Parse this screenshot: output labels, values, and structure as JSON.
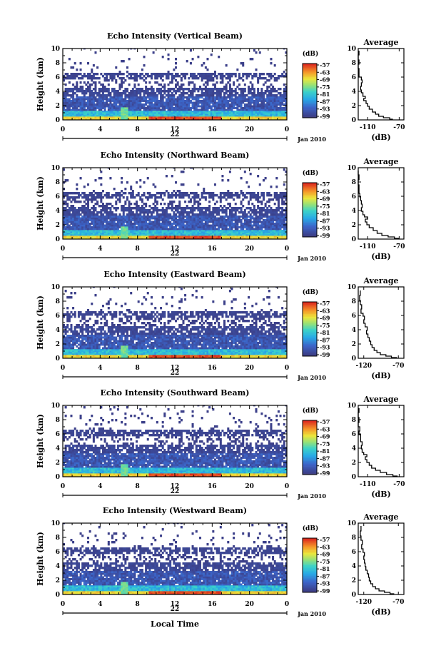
{
  "page": {
    "xlabel_bottom": "Local Time",
    "date_label": "Jan 2010",
    "day_label": "22"
  },
  "chart_data": [
    {
      "type": "heatmap",
      "title": "Echo Intensity (Vertical Beam)",
      "ylabel": "Height (km)",
      "x_ticks": [
        "0",
        "4",
        "8",
        "12",
        "16",
        "20",
        "0"
      ],
      "y_ticks": [
        "0",
        "2",
        "4",
        "6",
        "8",
        "10"
      ],
      "xlim": [
        0,
        24
      ],
      "ylim": [
        0,
        10
      ],
      "colorbar": {
        "label": "(dB)",
        "ticks": [
          "-57",
          "-63",
          "-69",
          "-75",
          "-81",
          "-87",
          "-93",
          "-99"
        ]
      },
      "avg": {
        "title": "Average",
        "xlabel": "(dB)",
        "x_ticks": [
          "-110",
          "-70"
        ],
        "xlim": [
          -122,
          -64
        ],
        "y_ticks": [
          "0",
          "2",
          "4",
          "6",
          "8",
          "10"
        ],
        "profile": [
          [
            -78,
            0.1
          ],
          [
            -82,
            0.3
          ],
          [
            -90,
            0.5
          ],
          [
            -96,
            0.8
          ],
          [
            -100,
            1.1
          ],
          [
            -104,
            1.5
          ],
          [
            -108,
            1.9
          ],
          [
            -110,
            2.3
          ],
          [
            -112,
            2.7
          ],
          [
            -115,
            3.0
          ],
          [
            -113,
            3.3
          ],
          [
            -116,
            3.8
          ],
          [
            -118,
            4.2
          ],
          [
            -119,
            4.7
          ],
          [
            -118,
            5.2
          ],
          [
            -117,
            5.6
          ],
          [
            -118,
            6.0
          ],
          [
            -121,
            6.5
          ],
          [
            -121,
            7.2
          ],
          [
            -122,
            7.8
          ],
          [
            -121,
            8.4
          ],
          [
            -122,
            9.1
          ],
          [
            -121,
            9.7
          ]
        ]
      }
    },
    {
      "type": "heatmap",
      "title": "Echo Intensity (Northward Beam)",
      "ylabel": "Height (km)",
      "x_ticks": [
        "0",
        "4",
        "8",
        "12",
        "16",
        "20",
        "0"
      ],
      "y_ticks": [
        "0",
        "2",
        "4",
        "6",
        "8",
        "10"
      ],
      "xlim": [
        0,
        24
      ],
      "ylim": [
        0,
        10
      ],
      "colorbar": {
        "label": "(dB)",
        "ticks": [
          "-57",
          "-63",
          "-69",
          "-75",
          "-81",
          "-87",
          "-93",
          "-99"
        ]
      },
      "avg": {
        "title": "Average",
        "xlabel": "(dB)",
        "x_ticks": [
          "-110",
          "-70"
        ],
        "xlim": [
          -122,
          -64
        ],
        "y_ticks": [
          "0",
          "2",
          "4",
          "6",
          "8",
          "10"
        ],
        "profile": [
          [
            -70,
            0.1
          ],
          [
            -76,
            0.3
          ],
          [
            -84,
            0.5
          ],
          [
            -92,
            0.8
          ],
          [
            -98,
            1.2
          ],
          [
            -103,
            1.6
          ],
          [
            -108,
            2.0
          ],
          [
            -111,
            2.4
          ],
          [
            -113,
            2.8
          ],
          [
            -110,
            3.1
          ],
          [
            -114,
            3.4
          ],
          [
            -116,
            3.9
          ],
          [
            -118,
            4.4
          ],
          [
            -117,
            4.9
          ],
          [
            -118,
            5.4
          ],
          [
            -119,
            5.9
          ],
          [
            -120,
            6.4
          ],
          [
            -121,
            7.0
          ],
          [
            -121,
            7.6
          ],
          [
            -122,
            8.3
          ],
          [
            -121,
            9.0
          ],
          [
            -122,
            9.6
          ]
        ]
      }
    },
    {
      "type": "heatmap",
      "title": "Echo Intensity (Eastward Beam)",
      "ylabel": "Height (km)",
      "x_ticks": [
        "0",
        "4",
        "8",
        "12",
        "16",
        "20",
        "0"
      ],
      "y_ticks": [
        "0",
        "2",
        "4",
        "6",
        "8",
        "10"
      ],
      "xlim": [
        0,
        24
      ],
      "ylim": [
        0,
        10
      ],
      "colorbar": {
        "label": "(dB)",
        "ticks": [
          "-57",
          "-63",
          "-69",
          "-75",
          "-81",
          "-87",
          "-93",
          "-99"
        ]
      },
      "avg": {
        "title": "Average",
        "xlabel": "(dB)",
        "x_ticks": [
          "-120",
          "-70"
        ],
        "xlim": [
          -128,
          -62
        ],
        "y_ticks": [
          "0",
          "2",
          "4",
          "6",
          "8",
          "10"
        ],
        "profile": [
          [
            -72,
            0.1
          ],
          [
            -80,
            0.3
          ],
          [
            -88,
            0.5
          ],
          [
            -96,
            0.8
          ],
          [
            -101,
            1.1
          ],
          [
            -105,
            1.5
          ],
          [
            -108,
            1.9
          ],
          [
            -110,
            2.4
          ],
          [
            -112,
            2.9
          ],
          [
            -114,
            3.4
          ],
          [
            -116,
            3.9
          ],
          [
            -115,
            4.4
          ],
          [
            -118,
            4.9
          ],
          [
            -120,
            5.4
          ],
          [
            -119,
            5.9
          ],
          [
            -121,
            6.3
          ],
          [
            -124,
            6.9
          ],
          [
            -123,
            7.5
          ],
          [
            -125,
            8.1
          ],
          [
            -126,
            8.8
          ],
          [
            -125,
            9.5
          ]
        ]
      }
    },
    {
      "type": "heatmap",
      "title": "Echo Intensity (Southward Beam)",
      "ylabel": "Height (km)",
      "x_ticks": [
        "0",
        "4",
        "8",
        "12",
        "16",
        "20",
        "0"
      ],
      "y_ticks": [
        "0",
        "2",
        "4",
        "6",
        "8",
        "10"
      ],
      "xlim": [
        0,
        24
      ],
      "ylim": [
        0,
        10
      ],
      "colorbar": {
        "label": "(dB)",
        "ticks": [
          "-57",
          "-63",
          "-69",
          "-75",
          "-81",
          "-87",
          "-93",
          "-99"
        ]
      },
      "avg": {
        "title": "Average",
        "xlabel": "(dB)",
        "x_ticks": [
          "-110",
          "-70"
        ],
        "xlim": [
          -122,
          -64
        ],
        "y_ticks": [
          "0",
          "2",
          "4",
          "6",
          "8",
          "10"
        ],
        "profile": [
          [
            -72,
            0.1
          ],
          [
            -78,
            0.3
          ],
          [
            -86,
            0.6
          ],
          [
            -94,
            0.9
          ],
          [
            -100,
            1.2
          ],
          [
            -105,
            1.6
          ],
          [
            -108,
            2.0
          ],
          [
            -111,
            2.4
          ],
          [
            -113,
            2.8
          ],
          [
            -111,
            3.1
          ],
          [
            -115,
            3.4
          ],
          [
            -117,
            3.9
          ],
          [
            -118,
            4.4
          ],
          [
            -117,
            4.9
          ],
          [
            -119,
            5.4
          ],
          [
            -119,
            5.9
          ],
          [
            -121,
            6.4
          ],
          [
            -120,
            7.0
          ],
          [
            -122,
            7.6
          ],
          [
            -121,
            8.3
          ],
          [
            -122,
            9.0
          ],
          [
            -121,
            9.6
          ]
        ]
      }
    },
    {
      "type": "heatmap",
      "title": "Echo Intensity (Westward Beam)",
      "ylabel": "Height (km)",
      "x_ticks": [
        "0",
        "4",
        "8",
        "12",
        "16",
        "20",
        "0"
      ],
      "y_ticks": [
        "0",
        "2",
        "4",
        "6",
        "8",
        "10"
      ],
      "xlim": [
        0,
        24
      ],
      "ylim": [
        0,
        10
      ],
      "colorbar": {
        "label": "(dB)",
        "ticks": [
          "-57",
          "-63",
          "-69",
          "-75",
          "-81",
          "-87",
          "-93",
          "-99"
        ]
      },
      "avg": {
        "title": "Average",
        "xlabel": "(dB)",
        "x_ticks": [
          "-120",
          "-70"
        ],
        "xlim": [
          -128,
          -62
        ],
        "y_ticks": [
          "0",
          "2",
          "4",
          "6",
          "8",
          "10"
        ],
        "profile": [
          [
            -76,
            0.1
          ],
          [
            -82,
            0.3
          ],
          [
            -90,
            0.5
          ],
          [
            -98,
            0.8
          ],
          [
            -103,
            1.1
          ],
          [
            -107,
            1.5
          ],
          [
            -110,
            1.9
          ],
          [
            -112,
            2.4
          ],
          [
            -113,
            2.9
          ],
          [
            -115,
            3.4
          ],
          [
            -117,
            3.9
          ],
          [
            -118,
            4.4
          ],
          [
            -119,
            4.9
          ],
          [
            -120,
            5.4
          ],
          [
            -119,
            5.9
          ],
          [
            -121,
            6.4
          ],
          [
            -123,
            7.0
          ],
          [
            -122,
            7.6
          ],
          [
            -124,
            8.2
          ],
          [
            -125,
            8.9
          ],
          [
            -124,
            9.6
          ]
        ]
      }
    }
  ]
}
